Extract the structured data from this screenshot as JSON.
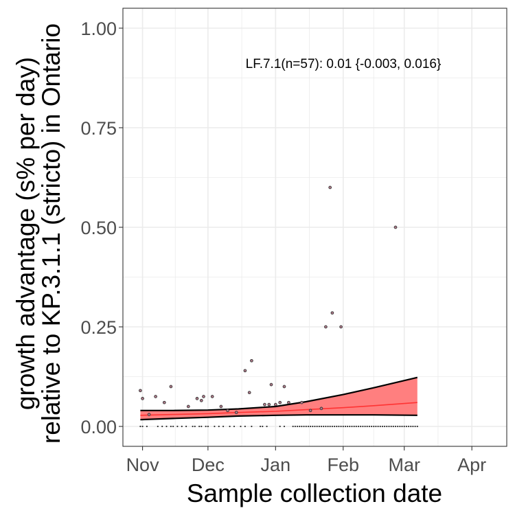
{
  "chart_data": {
    "type": "scatter",
    "title": "",
    "xlabel": "Sample collection date",
    "ylabel_lines": [
      "growth advantage (s% per day)",
      "relative to KP.3.1.1 (stricto) in Ontario"
    ],
    "annotation": "LF.7.1(n=57): 0.01 {-0.003, 0.016}",
    "x_type": "date",
    "xlim": [
      "2024-10-23",
      "2025-04-17"
    ],
    "ylim": [
      -0.05,
      1.05
    ],
    "x_ticks": [
      {
        "date": "2024-11-01",
        "label": "Nov"
      },
      {
        "date": "2024-12-01",
        "label": "Dec"
      },
      {
        "date": "2025-01-01",
        "label": "Jan"
      },
      {
        "date": "2025-02-01",
        "label": "Feb"
      },
      {
        "date": "2025-03-01",
        "label": "Mar"
      },
      {
        "date": "2025-04-01",
        "label": "Apr"
      }
    ],
    "y_ticks": [
      {
        "value": 0.0,
        "label": "0.00"
      },
      {
        "value": 0.25,
        "label": "0.25"
      },
      {
        "value": 0.5,
        "label": "0.50"
      },
      {
        "value": 0.75,
        "label": "0.75"
      },
      {
        "value": 1.0,
        "label": "1.00"
      }
    ],
    "grid": true,
    "colors": {
      "fit_line": "#ff3333",
      "ribbon_fill": "#ff7f7f",
      "ribbon_edge": "#000000",
      "point_fill": "#b07a8a",
      "point_edge": "#333333",
      "panel_border": "#333333",
      "grid": "#ebebeb"
    },
    "points": [
      {
        "x": "2024-10-31",
        "y": 0.09
      },
      {
        "x": "2024-11-01",
        "y": 0.07
      },
      {
        "x": "2024-11-04",
        "y": 0.03
      },
      {
        "x": "2024-11-07",
        "y": 0.075
      },
      {
        "x": "2024-11-11",
        "y": 0.06
      },
      {
        "x": "2024-11-14",
        "y": 0.1
      },
      {
        "x": "2024-11-22",
        "y": 0.05
      },
      {
        "x": "2024-11-26",
        "y": 0.07
      },
      {
        "x": "2024-11-28",
        "y": 0.065
      },
      {
        "x": "2024-11-29",
        "y": 0.075
      },
      {
        "x": "2024-12-03",
        "y": 0.075
      },
      {
        "x": "2024-12-07",
        "y": 0.05
      },
      {
        "x": "2024-12-10",
        "y": 0.04
      },
      {
        "x": "2024-12-14",
        "y": 0.035
      },
      {
        "x": "2024-12-18",
        "y": 0.14
      },
      {
        "x": "2024-12-20",
        "y": 0.085
      },
      {
        "x": "2024-12-21",
        "y": 0.165
      },
      {
        "x": "2024-12-27",
        "y": 0.055
      },
      {
        "x": "2024-12-29",
        "y": 0.055
      },
      {
        "x": "2024-12-30",
        "y": 0.105
      },
      {
        "x": "2025-01-01",
        "y": 0.055
      },
      {
        "x": "2025-01-03",
        "y": 0.06
      },
      {
        "x": "2025-01-05",
        "y": 0.1
      },
      {
        "x": "2025-01-07",
        "y": 0.06
      },
      {
        "x": "2025-01-13",
        "y": 0.06
      },
      {
        "x": "2025-01-17",
        "y": 0.04
      },
      {
        "x": "2025-01-22",
        "y": 0.045
      },
      {
        "x": "2025-01-24",
        "y": 0.25
      },
      {
        "x": "2025-01-26",
        "y": 0.6
      },
      {
        "x": "2025-01-27",
        "y": 0.285
      },
      {
        "x": "2025-01-31",
        "y": 0.25
      },
      {
        "x": "2025-02-25",
        "y": 0.5
      }
    ],
    "zero_point_dates": [
      "2024-10-31",
      "2024-11-01",
      "2024-11-03",
      "2024-11-08",
      "2024-11-10",
      "2024-11-12",
      "2024-11-14",
      "2024-11-15",
      "2024-11-17",
      "2024-11-19",
      "2024-11-21",
      "2024-11-24",
      "2024-11-25",
      "2024-11-27",
      "2024-11-28",
      "2024-11-30",
      "2024-12-01",
      "2024-12-04",
      "2024-12-06",
      "2024-12-08",
      "2024-12-11",
      "2024-12-13",
      "2024-12-16",
      "2024-12-18",
      "2024-12-21",
      "2024-12-25",
      "2024-12-26",
      "2024-12-28",
      "2025-01-03",
      "2025-01-05",
      "2025-01-09",
      "2025-01-10",
      "2025-01-11",
      "2025-01-12",
      "2025-01-13",
      "2025-01-14",
      "2025-01-15",
      "2025-01-16",
      "2025-01-17",
      "2025-01-18",
      "2025-01-19",
      "2025-01-20",
      "2025-01-21",
      "2025-01-22",
      "2025-01-23",
      "2025-01-24",
      "2025-01-25",
      "2025-01-26",
      "2025-01-27",
      "2025-01-28",
      "2025-01-29",
      "2025-01-30",
      "2025-01-31",
      "2025-02-01",
      "2025-02-02",
      "2025-02-03",
      "2025-02-04",
      "2025-02-05",
      "2025-02-06",
      "2025-02-07",
      "2025-02-08",
      "2025-02-09",
      "2025-02-10",
      "2025-02-11",
      "2025-02-12",
      "2025-02-13",
      "2025-02-14",
      "2025-02-15",
      "2025-02-16",
      "2025-02-17",
      "2025-02-18",
      "2025-02-19",
      "2025-02-20",
      "2025-02-21",
      "2025-02-22",
      "2025-02-23",
      "2025-02-24",
      "2025-02-25",
      "2025-02-26",
      "2025-02-27",
      "2025-02-28",
      "2025-03-01",
      "2025-03-02",
      "2025-03-03",
      "2025-03-04",
      "2025-03-05",
      "2025-03-06",
      "2025-03-07"
    ],
    "fit": [
      {
        "x": "2024-10-31",
        "y": 0.028,
        "lower": 0.017,
        "upper": 0.04
      },
      {
        "x": "2024-11-15",
        "y": 0.03,
        "lower": 0.02,
        "upper": 0.04
      },
      {
        "x": "2024-12-01",
        "y": 0.032,
        "lower": 0.023,
        "upper": 0.041
      },
      {
        "x": "2024-12-15",
        "y": 0.035,
        "lower": 0.026,
        "upper": 0.044
      },
      {
        "x": "2025-01-01",
        "y": 0.038,
        "lower": 0.028,
        "upper": 0.05
      },
      {
        "x": "2025-01-15",
        "y": 0.042,
        "lower": 0.029,
        "upper": 0.062
      },
      {
        "x": "2025-02-01",
        "y": 0.047,
        "lower": 0.029,
        "upper": 0.08
      },
      {
        "x": "2025-02-15",
        "y": 0.052,
        "lower": 0.029,
        "upper": 0.097
      },
      {
        "x": "2025-03-07",
        "y": 0.06,
        "lower": 0.028,
        "upper": 0.123
      }
    ]
  }
}
